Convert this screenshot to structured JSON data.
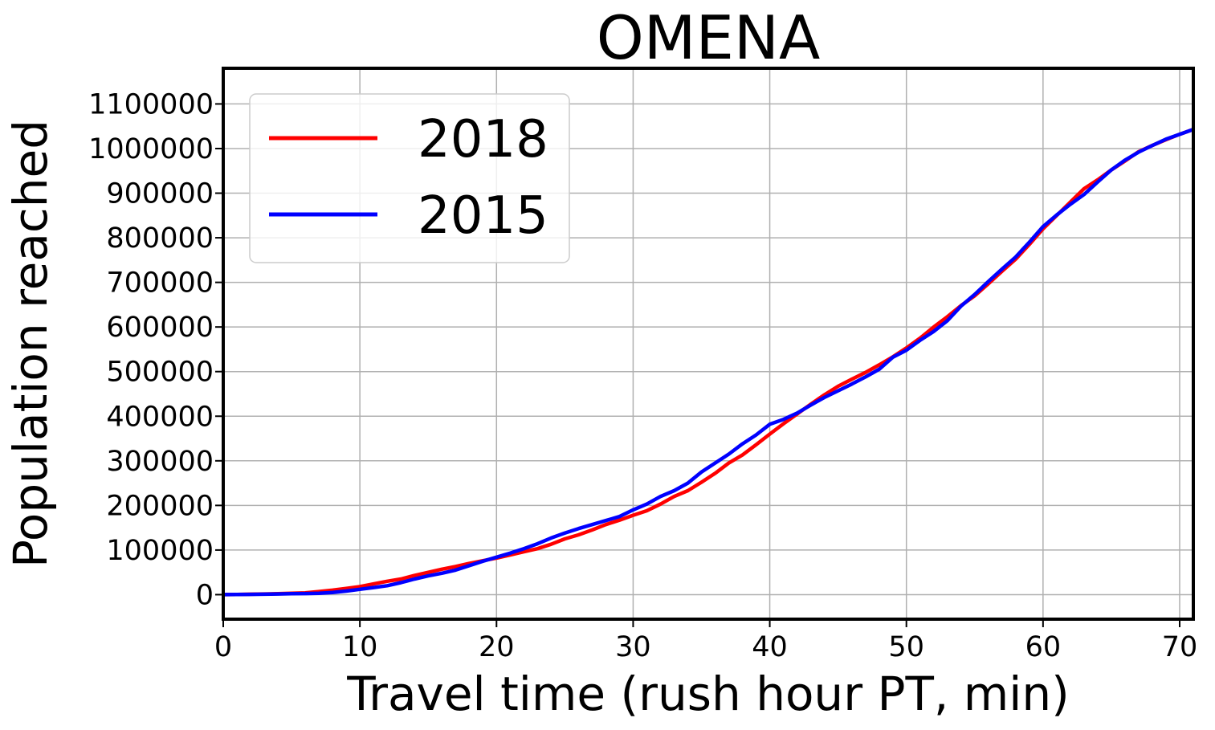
{
  "chart_data": {
    "type": "line",
    "title": "OMENA",
    "xlabel": "Travel time (rush hour PT, min)",
    "ylabel": "Population reached",
    "xlim": [
      0,
      71
    ],
    "ylim": [
      -55000,
      1180000
    ],
    "xticks": [
      0,
      10,
      20,
      30,
      40,
      50,
      60,
      70
    ],
    "yticks": [
      0,
      100000,
      200000,
      300000,
      400000,
      500000,
      600000,
      700000,
      800000,
      900000,
      1000000,
      1100000
    ],
    "grid": true,
    "legend_position": "top-left",
    "x": [
      0,
      1,
      2,
      3,
      4,
      5,
      6,
      7,
      8,
      9,
      10,
      11,
      12,
      13,
      14,
      15,
      16,
      17,
      18,
      19,
      20,
      21,
      22,
      23,
      24,
      25,
      26,
      27,
      28,
      29,
      30,
      31,
      32,
      33,
      34,
      35,
      36,
      37,
      38,
      39,
      40,
      41,
      42,
      43,
      44,
      45,
      46,
      47,
      48,
      49,
      50,
      51,
      52,
      53,
      54,
      55,
      56,
      57,
      58,
      59,
      60,
      61,
      62,
      63,
      64,
      65,
      66,
      67,
      68,
      69,
      70,
      71
    ],
    "series": [
      {
        "name": "2018",
        "color": "#ff0000",
        "values": [
          0,
          500,
          1000,
          1500,
          2000,
          3000,
          4000,
          7000,
          10000,
          14000,
          18000,
          24000,
          30000,
          35000,
          43000,
          50000,
          57000,
          63000,
          70000,
          76000,
          82000,
          89000,
          96000,
          103000,
          113000,
          125000,
          134000,
          145000,
          157000,
          167000,
          178000,
          188000,
          203000,
          220000,
          233000,
          252000,
          272000,
          295000,
          313000,
          336000,
          360000,
          383000,
          405000,
          427000,
          448000,
          467000,
          483000,
          498000,
          515000,
          533000,
          553000,
          575000,
          600000,
          623000,
          648000,
          670000,
          697000,
          725000,
          752000,
          785000,
          820000,
          850000,
          880000,
          910000,
          930000,
          952000,
          972000,
          993000,
          1007000,
          1020000,
          1032000,
          1043000
        ]
      },
      {
        "name": "2015",
        "color": "#0000ff",
        "values": [
          0,
          300,
          700,
          1000,
          1500,
          2000,
          2500,
          3000,
          5000,
          8000,
          12000,
          16000,
          20000,
          27000,
          35000,
          42000,
          48000,
          55000,
          65000,
          75000,
          84000,
          93000,
          103000,
          114000,
          127000,
          138000,
          148000,
          157000,
          166000,
          175000,
          190000,
          203000,
          220000,
          233000,
          250000,
          275000,
          295000,
          315000,
          338000,
          358000,
          382000,
          393000,
          407000,
          425000,
          442000,
          457000,
          472000,
          488000,
          505000,
          532000,
          548000,
          570000,
          590000,
          614000,
          647000,
          673000,
          702000,
          730000,
          757000,
          790000,
          825000,
          851000,
          875000,
          897000,
          925000,
          952000,
          974000,
          992000,
          1007000,
          1021000,
          1032000,
          1043000
        ]
      }
    ]
  }
}
